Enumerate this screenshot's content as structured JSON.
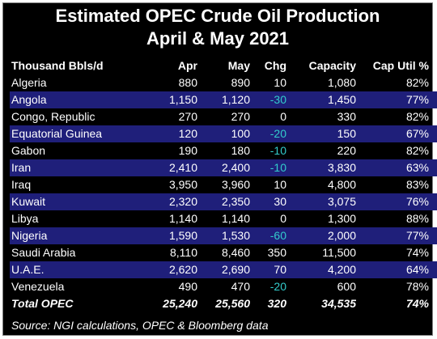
{
  "title_line1": "Estimated OPEC Crude Oil Production",
  "title_line2": "April & May 2021",
  "source": "Source: NGI calculations, OPEC & Bloomberg data",
  "colors": {
    "background": "#000000",
    "band": "#1f1f7a",
    "negative": "#33cccc",
    "text": "#ffffff"
  },
  "chart_data": {
    "type": "table",
    "title": "Estimated OPEC Crude Oil Production April & May 2021",
    "columns": [
      "Thousand Bbls/d",
      "Apr",
      "May",
      "Chg",
      "Capacity",
      "Cap Util %"
    ],
    "rows": [
      [
        "Algeria",
        "880",
        "890",
        "10",
        "1,080",
        "82%"
      ],
      [
        "Angola",
        "1,150",
        "1,120",
        "-30",
        "1,450",
        "77%"
      ],
      [
        "Congo, Republic",
        "270",
        "270",
        "0",
        "330",
        "82%"
      ],
      [
        "Equatorial Guinea",
        "120",
        "100",
        "-20",
        "150",
        "67%"
      ],
      [
        "Gabon",
        "190",
        "180",
        "-10",
        "220",
        "82%"
      ],
      [
        "Iran",
        "2,410",
        "2,400",
        "-10",
        "3,830",
        "63%"
      ],
      [
        "Iraq",
        "3,950",
        "3,960",
        "10",
        "4,800",
        "83%"
      ],
      [
        "Kuwait",
        "2,320",
        "2,350",
        "30",
        "3,075",
        "76%"
      ],
      [
        "Libya",
        "1,140",
        "1,140",
        "0",
        "1,300",
        "88%"
      ],
      [
        "Nigeria",
        "1,590",
        "1,530",
        "-60",
        "2,000",
        "77%"
      ],
      [
        "Saudi Arabia",
        "8,110",
        "8,460",
        "350",
        "11,500",
        "74%"
      ],
      [
        "U.A.E.",
        "2,620",
        "2,690",
        "70",
        "4,200",
        "64%"
      ],
      [
        "Venezuela",
        "490",
        "470",
        "-20",
        "600",
        "78%"
      ]
    ],
    "total": [
      "Total OPEC",
      "25,240",
      "25,560",
      "320",
      "34,535",
      "74%"
    ]
  }
}
